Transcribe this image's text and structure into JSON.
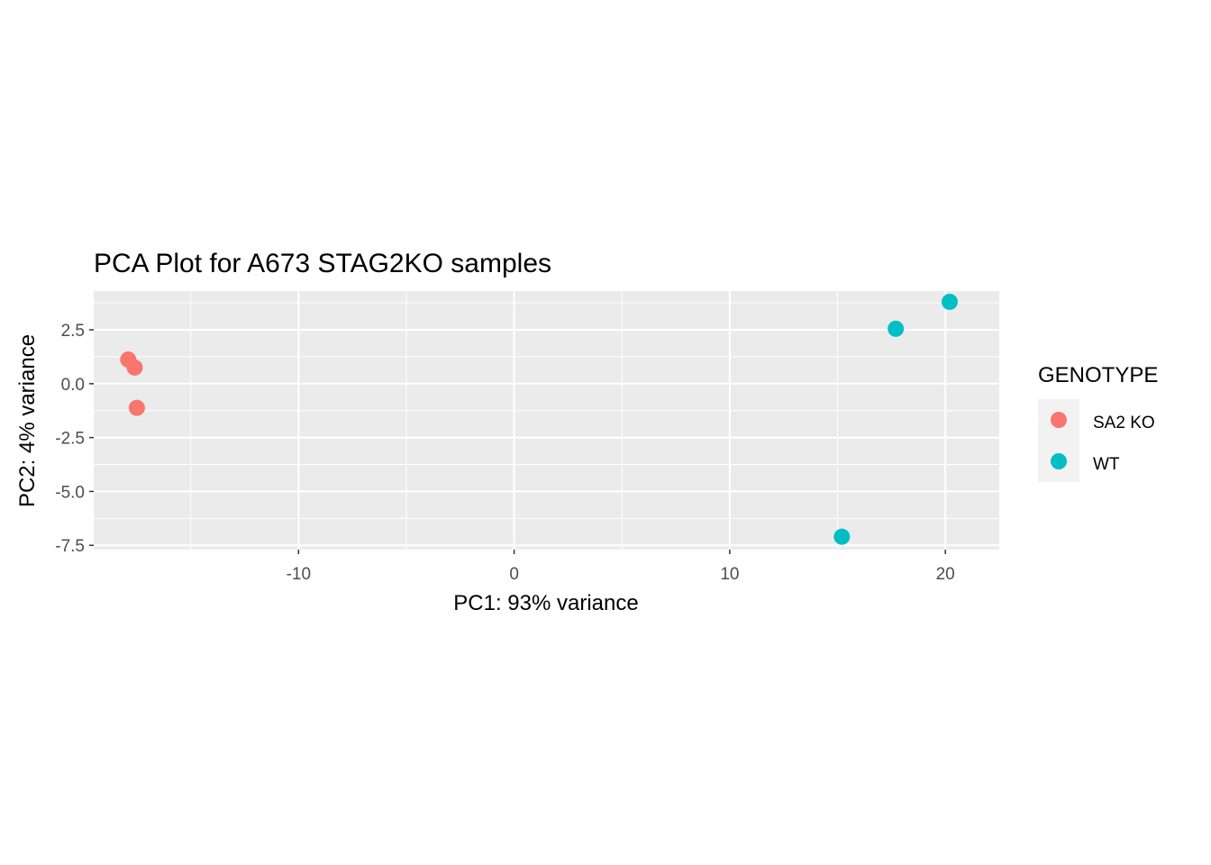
{
  "chart_data": {
    "type": "scatter",
    "title": "PCA Plot for A673 STAG2KO samples",
    "xlabel": "PC1: 93% variance",
    "ylabel": "PC2: 4% variance",
    "xlim": [
      -19.5,
      22.5
    ],
    "ylim": [
      -7.7,
      4.3
    ],
    "xticks": [
      -10,
      0,
      10,
      20
    ],
    "xtick_labels": [
      "-10",
      "0",
      "10",
      "20"
    ],
    "yticks": [
      2.5,
      0.0,
      -2.5,
      -5.0,
      -7.5
    ],
    "ytick_labels": [
      "2.5",
      "0.0",
      "-2.5",
      "-5.0",
      "-7.5"
    ],
    "grid": true,
    "legend": {
      "title": "GENOTYPE",
      "placement": "right"
    },
    "series": [
      {
        "name": "SA2 KO",
        "color": "#F8766D",
        "points": [
          [
            -17.9,
            1.12
          ],
          [
            -17.6,
            0.75
          ],
          [
            -17.5,
            -1.12
          ]
        ]
      },
      {
        "name": "WT",
        "color": "#00BFC4",
        "points": [
          [
            17.7,
            2.55
          ],
          [
            20.2,
            3.8
          ],
          [
            15.2,
            -7.1
          ]
        ]
      }
    ]
  }
}
